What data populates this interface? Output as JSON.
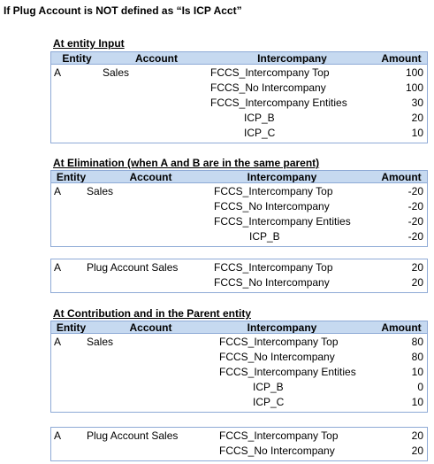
{
  "title": "If Plug Account is NOT defined as “Is ICP Acct”",
  "sections": [
    {
      "heading": "At entity Input",
      "tables": [
        {
          "header": [
            "Entity",
            "Account",
            "Intercompany",
            "Amount"
          ],
          "rows": [
            {
              "entity": "A",
              "account": "Sales",
              "intercompany": "FCCS_Intercompany Top",
              "amount": 100
            },
            {
              "intercompany": "FCCS_No Intercompany",
              "amount": 100
            },
            {
              "intercompany": "FCCS_Intercompany Entities",
              "amount": 30,
              "children": [
                {
                  "intercompany": "ICP_B",
                  "amount": 20
                },
                {
                  "intercompany": "ICP_C",
                  "amount": 10
                }
              ]
            }
          ]
        }
      ]
    },
    {
      "heading": "At Elimination (when A and B are in the same parent)",
      "tables": [
        {
          "header": [
            "Entity",
            "Account",
            "Intercompany",
            "Amount"
          ],
          "rows": [
            {
              "entity": "A",
              "account": "Sales",
              "intercompany": "FCCS_Intercompany Top",
              "amount": -20
            },
            {
              "intercompany": "FCCS_No Intercompany",
              "amount": -20
            },
            {
              "intercompany": "FCCS_Intercompany Entities",
              "amount": -20,
              "children": [
                {
                  "intercompany": "ICP_B",
                  "amount": -20
                }
              ]
            }
          ]
        },
        {
          "rows": [
            {
              "entity": "A",
              "account": "Plug Account Sales",
              "intercompany": "FCCS_Intercompany Top",
              "amount": 20
            },
            {
              "intercompany": "FCCS_No Intercompany",
              "amount": 20
            }
          ]
        }
      ]
    },
    {
      "heading": "At Contribution and in the Parent entity",
      "tables": [
        {
          "header": [
            "Entity",
            "Account",
            "Intercompany",
            "Amount"
          ],
          "rows": [
            {
              "entity": "A",
              "account": "Sales",
              "intercompany": "FCCS_Intercompany Top",
              "amount": 80
            },
            {
              "intercompany": "FCCS_No Intercompany",
              "amount": 80
            },
            {
              "intercompany": "FCCS_Intercompany Entities",
              "amount": 10,
              "children": [
                {
                  "intercompany": "ICP_B",
                  "amount": 0
                },
                {
                  "intercompany": "ICP_C",
                  "amount": 10
                }
              ]
            }
          ]
        },
        {
          "rows": [
            {
              "entity": "A",
              "account": "Plug Account Sales",
              "intercompany": "FCCS_Intercompany Top",
              "amount": 20
            },
            {
              "intercompany": "FCCS_No Intercompany",
              "amount": 20
            }
          ]
        }
      ]
    }
  ]
}
